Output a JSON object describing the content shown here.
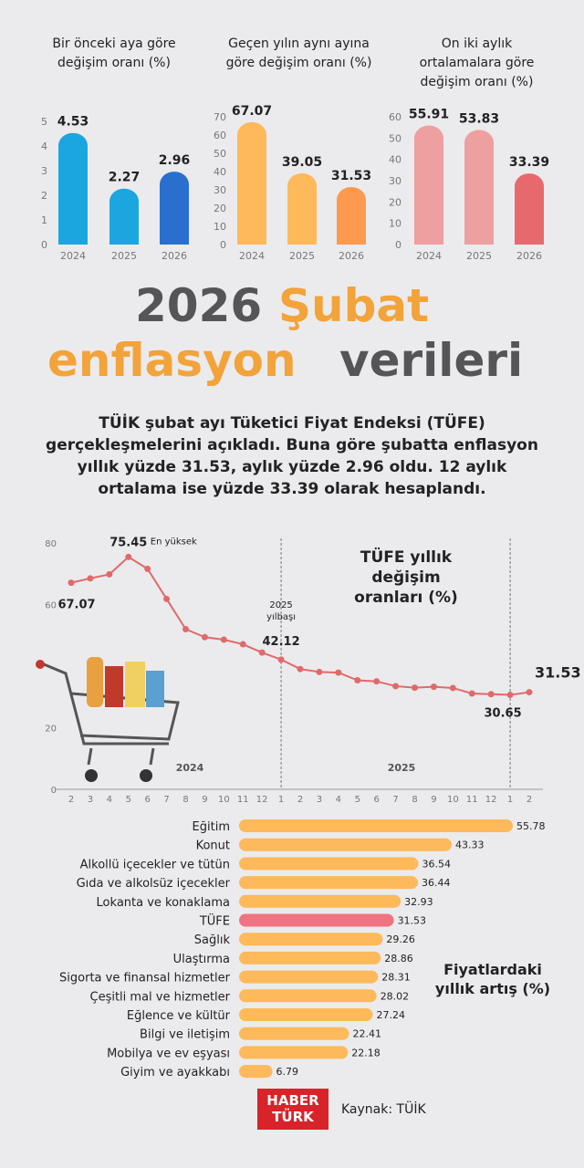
{
  "headline": [
    {
      "text": "2026",
      "color": "#555558"
    },
    {
      "text": "Şubat",
      "color": "#f2a33a"
    },
    {
      "text": "enflasyon",
      "color": "#f2a33a"
    },
    {
      "text": "verileri",
      "color": "#555558"
    }
  ],
  "intro": "TÜİK şubat ayı Tüketici Fiyat Endeksi (TÜFE) gerçekleşmelerini açıkladı. Buna göre şubatta enflasyon yıllık yüzde 31.53, aylık yüzde 2.96 oldu. 12 aylık ortalama ise yüzde 33.39 olarak hesaplandı.",
  "chart_data": [
    {
      "type": "bar",
      "title": "Bir önceki aya göre değişim oranı (%)",
      "categories": [
        "2024",
        "2025",
        "2026"
      ],
      "values": [
        4.53,
        2.27,
        2.96
      ],
      "colors": [
        "#1ba6e0",
        "#1ba6e0",
        "#2b6fce"
      ],
      "ylim": [
        0,
        5
      ],
      "yticks": [
        0,
        1,
        2,
        3,
        4,
        5
      ]
    },
    {
      "type": "bar",
      "title": "Geçen yılın aynı ayına göre değişim oranı (%)",
      "categories": [
        "2024",
        "2025",
        "2026"
      ],
      "values": [
        67.07,
        39.05,
        31.53
      ],
      "colors": [
        "#fdb95a",
        "#fdb95a",
        "#fd9a4f"
      ],
      "ylim": [
        0,
        70
      ],
      "yticks": [
        0,
        10,
        20,
        30,
        40,
        50,
        60,
        70
      ]
    },
    {
      "type": "bar",
      "title": "On iki aylık ortalamalara göre değişim oranı (%)",
      "categories": [
        "2024",
        "2025",
        "2026"
      ],
      "values": [
        55.91,
        53.83,
        33.39
      ],
      "colors": [
        "#ee9f9f",
        "#ee9f9f",
        "#e8696d"
      ],
      "ylim": [
        0,
        60
      ],
      "yticks": [
        0,
        10,
        20,
        30,
        40,
        50,
        60
      ]
    },
    {
      "type": "line",
      "title": "TÜFE yıllık değişim oranları (%)",
      "categories": [
        "2",
        "3",
        "4",
        "5",
        "6",
        "7",
        "8",
        "9",
        "10",
        "11",
        "12",
        "1",
        "2",
        "3",
        "4",
        "5",
        "6",
        "7",
        "8",
        "9",
        "10",
        "11",
        "12",
        "1",
        "2"
      ],
      "values": [
        67.07,
        68.5,
        69.8,
        75.45,
        71.6,
        61.8,
        52.0,
        49.4,
        48.6,
        47.1,
        44.4,
        42.12,
        39.05,
        38.1,
        37.9,
        35.4,
        35.05,
        33.5,
        33.0,
        33.3,
        32.9,
        31.1,
        30.89,
        30.65,
        31.53
      ],
      "color": "#e06a6a",
      "ylim": [
        0,
        80
      ],
      "yticks": [
        0,
        20,
        60,
        80
      ],
      "annotations": {
        "peak": "En yüksek",
        "newyear": "2025 yılbaşı",
        "year1": "2024",
        "year2": "2025"
      }
    },
    {
      "type": "hbar",
      "title": "Fiyatlardaki yıllık artış (%)",
      "categories": [
        "Eğitim",
        "Konut",
        "Alkollü içecekler ve tütün",
        "Gıda ve alkolsüz içecekler",
        "Lokanta ve konaklama",
        "TÜFE",
        "Sağlık",
        "Ulaştırma",
        "Sigorta ve finansal hizmetler",
        "Çeşitli mal ve hizmetler",
        "Eğlence ve kültür",
        "Bilgi ve iletişim",
        "Mobilya ve ev eşyası",
        "Giyim ve ayakkabı"
      ],
      "values": [
        55.78,
        43.33,
        36.54,
        36.44,
        32.93,
        31.53,
        29.26,
        28.86,
        28.31,
        28.02,
        27.24,
        22.41,
        22.18,
        6.79
      ],
      "colors": [
        "#fdb95a",
        "#fdb95a",
        "#fdb95a",
        "#fdb95a",
        "#fdb95a",
        "#f07381",
        "#fdb95a",
        "#fdb95a",
        "#fdb95a",
        "#fdb95a",
        "#fdb95a",
        "#fdb95a",
        "#fdb95a",
        "#fdb95a"
      ]
    }
  ],
  "footer": {
    "logo": [
      "HABER",
      "TÜRK"
    ],
    "source": "Kaynak: TÜİK"
  }
}
